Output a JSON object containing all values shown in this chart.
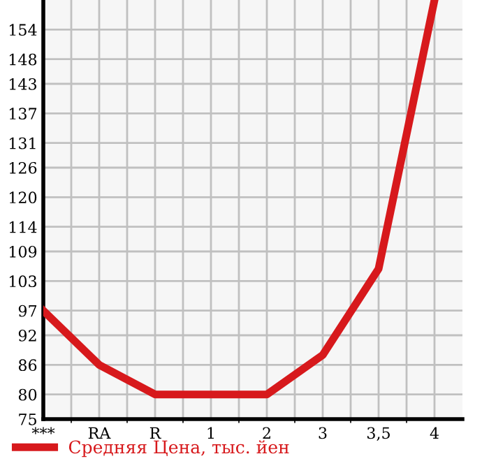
{
  "chart_data": {
    "type": "line",
    "categories": [
      "***",
      "RA",
      "R",
      "1",
      "2",
      "3",
      "3,5",
      "4"
    ],
    "series": [
      {
        "name": "Средняя Цена, тыс. йен",
        "color": "#d7191c",
        "values": [
          97,
          86,
          80,
          80,
          80,
          88,
          105.5,
          160
        ]
      }
    ],
    "ylim": [
      75,
      160
    ],
    "yticks": [
      75,
      80,
      86,
      92,
      97,
      103,
      109,
      114,
      120,
      126,
      131,
      137,
      143,
      148,
      154
    ],
    "grid": true,
    "legend": "bottom",
    "marker": "none",
    "line_style": "solid"
  }
}
